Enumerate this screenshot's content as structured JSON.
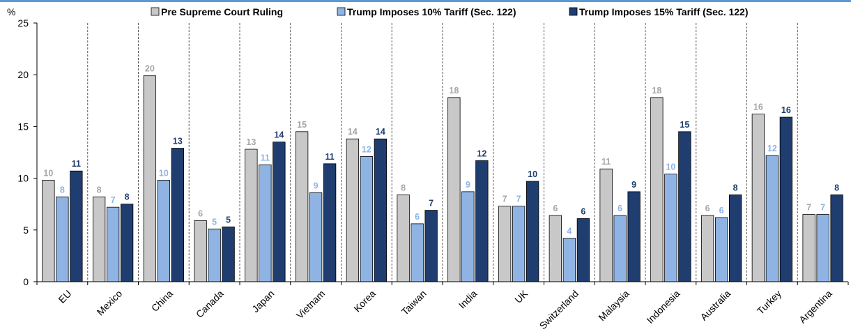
{
  "chart_data": {
    "type": "bar",
    "ylabel": "%",
    "ylim": [
      0,
      25
    ],
    "yticks": [
      0,
      5,
      10,
      15,
      20,
      25
    ],
    "grid": "dashed vertical separators between categories",
    "legend_position": "top",
    "categories": [
      "EU",
      "Mexico",
      "China",
      "Canada",
      "Japan",
      "Vietnam",
      "Korea",
      "Taiwan",
      "India",
      "UK",
      "Switzerland",
      "Malaysia",
      "Indonesia",
      "Australia",
      "Turkey",
      "Argentina"
    ],
    "series": [
      {
        "name": "Pre Supreme Court Ruling",
        "color": "#c8c8c8",
        "label_color": "#a6a6a6",
        "values": [
          9.8,
          8.2,
          19.9,
          5.9,
          12.8,
          14.5,
          13.8,
          8.4,
          17.8,
          7.3,
          6.4,
          10.9,
          17.8,
          6.4,
          16.2,
          6.5
        ],
        "labels": [
          "10",
          "8",
          "20",
          "6",
          "13",
          "15",
          "14",
          "8",
          "18",
          "7",
          "6",
          "11",
          "18",
          "6",
          "16",
          "7"
        ]
      },
      {
        "name": "Trump Imposes 10% Tariff (Sec. 122)",
        "color": "#8fb4e3",
        "label_color": "#8fb4e3",
        "values": [
          8.2,
          7.2,
          9.8,
          5.1,
          11.3,
          8.6,
          12.1,
          5.6,
          8.7,
          7.3,
          4.2,
          6.4,
          10.4,
          6.2,
          12.2,
          6.5
        ],
        "labels": [
          "8",
          "7",
          "10",
          "5",
          "11",
          "9",
          "12",
          "6",
          "9",
          "7",
          "4",
          "6",
          "10",
          "6",
          "12",
          "7"
        ]
      },
      {
        "name": "Trump Imposes 15% Tariff (Sec. 122)",
        "color": "#1f3d6e",
        "label_color": "#1f3d6e",
        "values": [
          10.7,
          7.5,
          12.9,
          5.3,
          13.5,
          11.4,
          13.8,
          6.9,
          11.7,
          9.7,
          6.1,
          8.7,
          14.5,
          8.4,
          15.9,
          8.4
        ],
        "labels": [
          "11",
          "8",
          "13",
          "5",
          "14",
          "11",
          "14",
          "7",
          "12",
          "10",
          "6",
          "9",
          "15",
          "8",
          "16",
          "8"
        ]
      }
    ]
  }
}
